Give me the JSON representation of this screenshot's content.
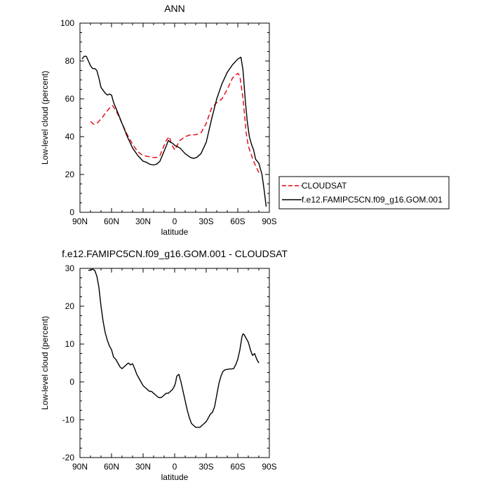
{
  "chart_data": [
    {
      "type": "line",
      "title": "ANN",
      "xlabel": "latitude",
      "ylabel": "Low-level cloud (percent)",
      "xlim": [
        90,
        -90
      ],
      "ylim": [
        0,
        100
      ],
      "x_ticks": [
        90,
        60,
        30,
        0,
        -30,
        -60,
        -90
      ],
      "x_tick_labels": [
        "90N",
        "60N",
        "30N",
        "0",
        "30S",
        "60S",
        "90S"
      ],
      "y_ticks": [
        0,
        20,
        40,
        60,
        80,
        100
      ],
      "y_tick_labels": [
        "0",
        "20",
        "40",
        "60",
        "80",
        "100"
      ],
      "grid": false,
      "legend_position": "right",
      "series": [
        {
          "name": "CLOUDSAT",
          "color": "#e8000b",
          "dash": "dashed",
          "x": [
            80,
            77,
            73,
            69,
            65,
            62,
            59,
            55,
            50,
            45,
            40,
            35,
            30,
            25,
            20,
            17,
            14,
            11,
            8,
            5,
            3,
            1,
            0,
            -2,
            -5,
            -10,
            -15,
            -20,
            -25,
            -30,
            -35,
            -40,
            -45,
            -50,
            -55,
            -60,
            -62,
            -65,
            -68,
            -70,
            -75,
            -80
          ],
          "y": [
            48,
            46.5,
            47.5,
            50,
            53,
            55,
            56.5,
            53,
            47,
            41,
            36,
            32,
            30,
            29.5,
            29,
            29,
            30,
            34,
            38,
            40,
            36,
            34,
            33,
            35,
            38,
            40,
            41,
            41,
            42,
            47,
            55,
            58,
            60,
            65,
            71,
            73.5,
            72,
            60,
            42,
            35,
            27,
            21
          ]
        },
        {
          "name": "f.e12.FAMIPC5CN.f09_g16.GOM.001",
          "color": "#000000",
          "dash": "solid",
          "x": [
            88,
            86,
            84,
            82,
            80,
            78,
            76,
            74,
            72,
            70,
            68,
            66,
            64,
            62,
            60,
            58,
            55,
            50,
            45,
            40,
            35,
            30,
            27,
            24,
            20,
            17,
            14,
            11,
            8,
            6,
            4,
            2,
            0,
            -5,
            -10,
            -15,
            -18,
            -21,
            -25,
            -30,
            -35,
            -40,
            -45,
            -50,
            -55,
            -60,
            -63,
            -65,
            -67,
            -69,
            -71,
            -73,
            -75,
            -77,
            -80,
            -83,
            -85,
            -87
          ],
          "y": [
            81,
            82.5,
            82.5,
            80,
            77.5,
            76,
            76,
            75,
            71,
            66,
            64.5,
            63,
            62,
            62.5,
            62,
            58,
            54,
            47,
            40,
            34,
            30,
            27,
            26.5,
            25.5,
            25,
            25.5,
            27,
            31,
            35,
            38,
            37,
            36.5,
            35.5,
            34,
            31,
            29,
            28.5,
            29,
            31,
            37,
            49,
            60,
            68,
            74,
            78,
            81,
            82,
            75,
            60,
            48,
            40,
            36,
            33,
            28,
            26,
            20,
            12,
            3
          ]
        }
      ]
    },
    {
      "type": "line",
      "title": "f.e12.FAMIPC5CN.f09_g16.GOM.001 - CLOUDSAT",
      "xlabel": "latitude",
      "ylabel": "Low-level cloud (percent)",
      "xlim": [
        90,
        -90
      ],
      "ylim": [
        -20,
        30
      ],
      "x_ticks": [
        90,
        60,
        30,
        0,
        -30,
        -60,
        -90
      ],
      "x_tick_labels": [
        "90N",
        "60N",
        "30N",
        "0",
        "30S",
        "60S",
        "90S"
      ],
      "y_ticks": [
        -20,
        -10,
        0,
        10,
        20,
        30
      ],
      "y_tick_labels": [
        "-20",
        "-10",
        "0",
        "10",
        "20",
        "30"
      ],
      "grid": false,
      "series": [
        {
          "color": "#000000",
          "dash": "solid",
          "x": [
            82,
            80,
            78,
            76,
            74,
            72,
            70,
            68,
            66,
            64,
            62,
            60,
            58,
            56,
            54,
            52,
            50,
            48,
            46,
            44,
            42,
            40,
            38,
            36,
            34,
            32,
            30,
            28,
            26,
            24,
            22,
            20,
            18,
            16,
            14,
            12,
            10,
            8,
            6,
            4,
            2,
            1,
            0,
            -1,
            -2,
            -4,
            -6,
            -8,
            -10,
            -12,
            -14,
            -16,
            -18,
            -20,
            -22,
            -24,
            -26,
            -28,
            -30,
            -32,
            -34,
            -36,
            -38,
            -40,
            -42,
            -44,
            -46,
            -48,
            -50,
            -52,
            -54,
            -56,
            -58,
            -60,
            -62,
            -64,
            -65,
            -66,
            -68,
            -70,
            -72,
            -74,
            -76,
            -78,
            -80
          ],
          "y": [
            29.5,
            29.5,
            29.8,
            29.5,
            28,
            25,
            20,
            16,
            13,
            11,
            9.5,
            8.5,
            6.5,
            6,
            5,
            4,
            3.5,
            4,
            4.5,
            5,
            4.5,
            4.8,
            3.5,
            2,
            1,
            0,
            -1,
            -1.5,
            -2,
            -2.5,
            -2.5,
            -3,
            -3.5,
            -4,
            -4.2,
            -4,
            -3.5,
            -3,
            -3,
            -2.5,
            -2,
            -1.5,
            -1,
            0,
            1.5,
            2,
            0,
            -2.5,
            -5,
            -7.5,
            -9.5,
            -11,
            -11.5,
            -12,
            -12,
            -12,
            -11.5,
            -11,
            -10.5,
            -9.5,
            -8.5,
            -8,
            -6.5,
            -3.5,
            -0.5,
            1.5,
            2.8,
            3.2,
            3.3,
            3.4,
            3.4,
            3.5,
            4.5,
            6,
            8.5,
            12,
            12.7,
            12.5,
            11.5,
            10.5,
            8.5,
            7,
            7.5,
            6,
            5
          ]
        }
      ]
    }
  ]
}
